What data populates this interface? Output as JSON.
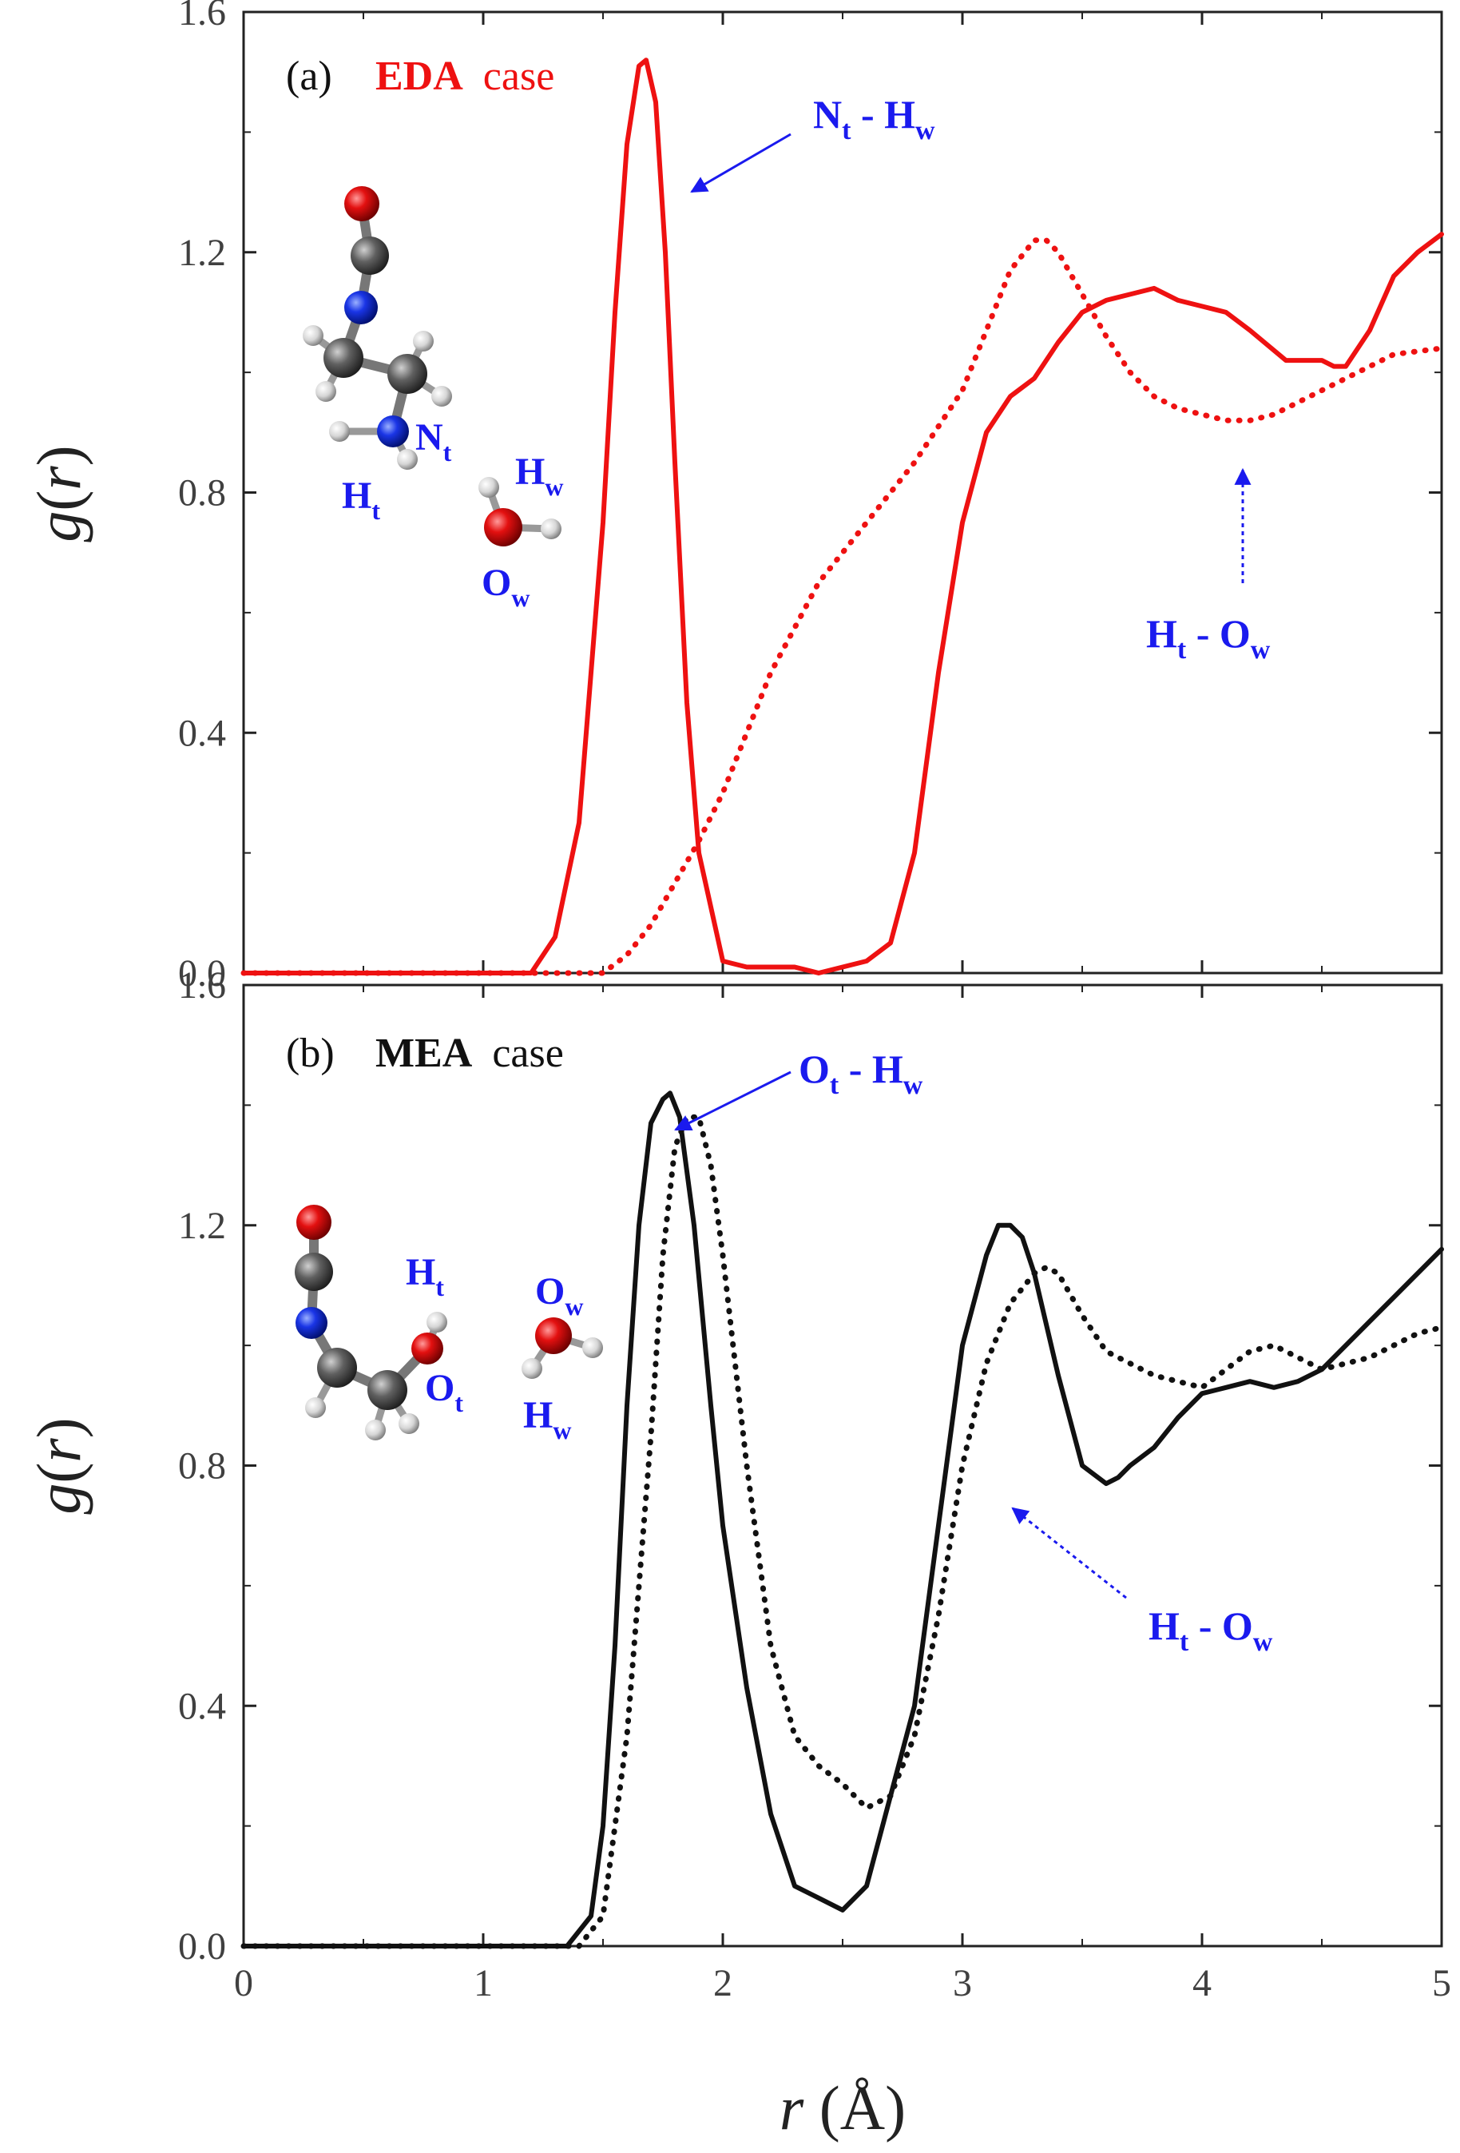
{
  "chart_data": [
    {
      "type": "line",
      "panel_label": "(a)",
      "title_bold": "EDA",
      "title_rest": "case",
      "title_color": "#ee1111",
      "xlabel_var": "r",
      "xlabel_unit": "(Å)",
      "ylabel_var": "g",
      "ylabel_arg": "r",
      "xlim": [
        0,
        5
      ],
      "ylim": [
        0,
        1.6
      ],
      "xticks": [
        "0",
        "1",
        "2",
        "3",
        "4",
        "5"
      ],
      "yticks": [
        "0.0",
        "0.4",
        "0.8",
        "1.2",
        "1.6"
      ],
      "series": [
        {
          "name": "Nt - Hw",
          "color": "#ee1111",
          "style": "solid",
          "x": [
            0,
            1.2,
            1.3,
            1.4,
            1.5,
            1.55,
            1.6,
            1.65,
            1.68,
            1.72,
            1.76,
            1.8,
            1.85,
            1.9,
            2.0,
            2.1,
            2.3,
            2.4,
            2.5,
            2.6,
            2.7,
            2.8,
            2.9,
            3.0,
            3.1,
            3.2,
            3.3,
            3.4,
            3.5,
            3.6,
            3.7,
            3.8,
            3.9,
            4.0,
            4.1,
            4.2,
            4.35,
            4.5,
            4.55,
            4.6,
            4.7,
            4.8,
            4.9,
            5.0
          ],
          "y": [
            0,
            0,
            0.06,
            0.25,
            0.75,
            1.1,
            1.38,
            1.51,
            1.52,
            1.45,
            1.2,
            0.85,
            0.45,
            0.2,
            0.02,
            0.01,
            0.01,
            0.0,
            0.01,
            0.02,
            0.05,
            0.2,
            0.5,
            0.75,
            0.9,
            0.96,
            0.99,
            1.05,
            1.1,
            1.12,
            1.13,
            1.14,
            1.12,
            1.11,
            1.1,
            1.07,
            1.02,
            1.02,
            1.01,
            1.01,
            1.07,
            1.16,
            1.2,
            1.23
          ]
        },
        {
          "name": "Ht - Ow",
          "color": "#ee1111",
          "style": "dotted",
          "x": [
            0,
            1.5,
            1.6,
            1.7,
            1.8,
            1.9,
            2.0,
            2.2,
            2.4,
            2.6,
            2.8,
            3.0,
            3.1,
            3.2,
            3.3,
            3.35,
            3.4,
            3.5,
            3.6,
            3.7,
            3.8,
            3.9,
            4.0,
            4.1,
            4.2,
            4.3,
            4.4,
            4.6,
            4.8,
            5.0
          ],
          "y": [
            0,
            0,
            0.03,
            0.08,
            0.15,
            0.22,
            0.3,
            0.5,
            0.65,
            0.75,
            0.85,
            0.97,
            1.07,
            1.17,
            1.22,
            1.22,
            1.2,
            1.13,
            1.06,
            1.0,
            0.96,
            0.94,
            0.93,
            0.92,
            0.92,
            0.93,
            0.95,
            0.99,
            1.03,
            1.04
          ]
        }
      ],
      "annotations": [
        {
          "base": "N",
          "sub": "t",
          "base2": "H",
          "sub2": "w"
        },
        {
          "base": "H",
          "sub": "t",
          "base2": "O",
          "sub2": "w"
        }
      ],
      "atom_labels": [
        {
          "base": "N",
          "sub": "t"
        },
        {
          "base": "H",
          "sub": "t"
        },
        {
          "base": "H",
          "sub": "w"
        },
        {
          "base": "O",
          "sub": "w"
        }
      ]
    },
    {
      "type": "line",
      "panel_label": "(b)",
      "title_bold": "MEA",
      "title_rest": "case",
      "title_color": "#111111",
      "xlim": [
        0,
        5
      ],
      "ylim": [
        0,
        1.6
      ],
      "xticks": [
        "0",
        "1",
        "2",
        "3",
        "4",
        "5"
      ],
      "yticks": [
        "0.0",
        "0.4",
        "0.8",
        "1.2",
        "1.6"
      ],
      "series": [
        {
          "name": "Ot - Hw",
          "color": "#111111",
          "style": "solid",
          "x": [
            0,
            1.35,
            1.45,
            1.5,
            1.55,
            1.6,
            1.65,
            1.7,
            1.75,
            1.78,
            1.82,
            1.88,
            1.95,
            2.0,
            2.1,
            2.2,
            2.3,
            2.4,
            2.5,
            2.6,
            2.7,
            2.8,
            2.9,
            3.0,
            3.1,
            3.15,
            3.2,
            3.25,
            3.3,
            3.4,
            3.5,
            3.6,
            3.65,
            3.7,
            3.8,
            3.9,
            4.0,
            4.1,
            4.2,
            4.3,
            4.4,
            4.5,
            4.6,
            4.7,
            4.8,
            4.9,
            5.0
          ],
          "y": [
            0,
            0,
            0.05,
            0.2,
            0.5,
            0.9,
            1.2,
            1.37,
            1.41,
            1.42,
            1.38,
            1.2,
            0.9,
            0.7,
            0.43,
            0.22,
            0.1,
            0.08,
            0.06,
            0.1,
            0.25,
            0.4,
            0.7,
            1.0,
            1.15,
            1.2,
            1.2,
            1.18,
            1.12,
            0.95,
            0.8,
            0.77,
            0.78,
            0.8,
            0.83,
            0.88,
            0.92,
            0.93,
            0.94,
            0.93,
            0.94,
            0.96,
            1.0,
            1.04,
            1.08,
            1.12,
            1.16
          ]
        },
        {
          "name": "Ht - Ow",
          "color": "#111111",
          "style": "dotted",
          "x": [
            0,
            1.4,
            1.5,
            1.6,
            1.7,
            1.75,
            1.8,
            1.85,
            1.9,
            1.95,
            2.0,
            2.1,
            2.2,
            2.3,
            2.4,
            2.5,
            2.6,
            2.7,
            2.8,
            2.9,
            3.0,
            3.1,
            3.2,
            3.3,
            3.35,
            3.4,
            3.5,
            3.6,
            3.7,
            3.8,
            3.9,
            4.0,
            4.1,
            4.2,
            4.3,
            4.4,
            4.5,
            4.6,
            4.7,
            4.8,
            4.9,
            5.0
          ],
          "y": [
            0,
            0,
            0.05,
            0.35,
            0.85,
            1.15,
            1.33,
            1.38,
            1.38,
            1.3,
            1.15,
            0.8,
            0.5,
            0.35,
            0.3,
            0.27,
            0.23,
            0.25,
            0.35,
            0.55,
            0.8,
            0.97,
            1.07,
            1.12,
            1.13,
            1.12,
            1.05,
            0.99,
            0.97,
            0.95,
            0.94,
            0.93,
            0.96,
            0.99,
            1.0,
            0.98,
            0.96,
            0.97,
            0.98,
            1.0,
            1.02,
            1.03
          ]
        }
      ],
      "annotations": [
        {
          "base": "O",
          "sub": "t",
          "base2": "H",
          "sub2": "w"
        },
        {
          "base": "H",
          "sub": "t",
          "base2": "O",
          "sub2": "w"
        }
      ],
      "atom_labels": [
        {
          "base": "H",
          "sub": "t"
        },
        {
          "base": "O",
          "sub": "t"
        },
        {
          "base": "O",
          "sub": "w"
        },
        {
          "base": "H",
          "sub": "w"
        }
      ]
    }
  ]
}
